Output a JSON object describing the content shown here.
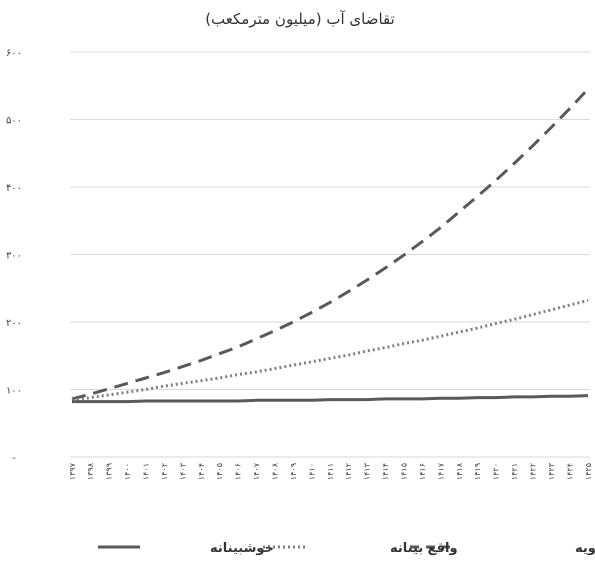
{
  "chart_data": {
    "type": "line",
    "title": "تقاضای آب (میلیون مترمکعب)",
    "xlabel": "",
    "ylabel": "",
    "ylim": [
      0,
      600
    ],
    "grid": true,
    "legend_position": "bottom",
    "y_ticks": [
      0,
      100,
      200,
      300,
      400,
      500,
      600
    ],
    "y_tick_labels": [
      "-",
      "۱۰۰",
      "۲۰۰",
      "۳۰۰",
      "۴۰۰",
      "۵۰۰",
      "۶۰۰"
    ],
    "x": [
      "۱۳۹۷",
      "۱۳۹۸",
      "۱۳۹۹",
      "۱۴۰۰",
      "۱۴۰۱",
      "۱۴۰۲",
      "۱۴۰۳",
      "۱۴۰۴",
      "۱۴۰۵",
      "۱۴۰۶",
      "۱۴۰۷",
      "۱۴۰۸",
      "۱۴۰۹",
      "۱۴۱۰",
      "۱۴۱۱",
      "۱۴۱۲",
      "۱۴۱۳",
      "۱۴۱۴",
      "۱۴۱۵",
      "۱۴۱۶",
      "۱۴۱۷",
      "۱۴۱۸",
      "۱۴۱۹",
      "۱۴۲۰",
      "۱۴۲۱",
      "۱۴۲۲",
      "۱۴۲۳",
      "۱۴۲۴",
      "۱۴۲۵"
    ],
    "series": [
      {
        "name": "مصرف بی‌رویه",
        "style": "dashed",
        "color": "#595959",
        "values": [
          86,
          93,
          101,
          109,
          117,
          125,
          134,
          143,
          153,
          163,
          175,
          187,
          200,
          214,
          229,
          245,
          262,
          280,
          299,
          319,
          340,
          363,
          386,
          410,
          435,
          461,
          488,
          516,
          545
        ]
      },
      {
        "name": "واقع بینانه",
        "style": "dotted",
        "color": "#7f7f7f",
        "values": [
          84,
          88,
          92,
          96,
          100,
          105,
          109,
          113,
          117,
          122,
          126,
          131,
          136,
          141,
          146,
          151,
          157,
          162,
          168,
          173,
          179,
          185,
          191,
          198,
          204,
          211,
          218,
          225,
          232
        ]
      },
      {
        "name": "خوشبینانه",
        "style": "solid",
        "color": "#595959",
        "values": [
          82,
          82,
          82,
          82,
          83,
          83,
          83,
          83,
          83,
          83,
          84,
          84,
          84,
          84,
          85,
          85,
          85,
          86,
          86,
          86,
          87,
          87,
          88,
          88,
          89,
          89,
          90,
          90,
          91
        ]
      }
    ]
  }
}
